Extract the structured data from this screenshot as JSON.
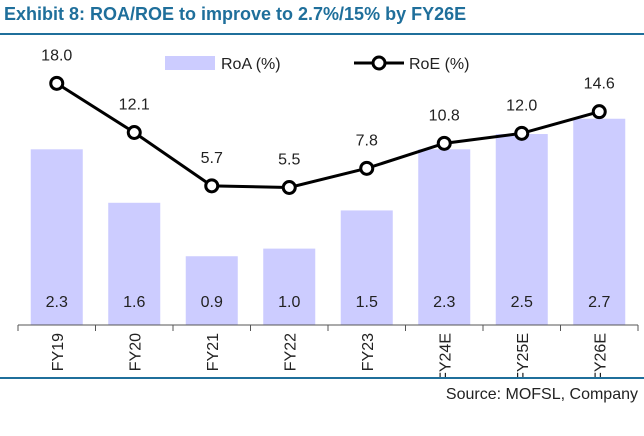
{
  "title": "Exhibit 8: ROA/ROE to improve to 2.7%/15% by FY26E",
  "source": "Source: MOFSL, Company",
  "colors": {
    "title": "#1f6f9b",
    "bar": "#ccccff",
    "line": "#000000",
    "marker_fill": "#ffffff"
  },
  "chart_data": {
    "type": "bar",
    "categories": [
      "FY19",
      "FY20",
      "FY21",
      "FY22",
      "FY23",
      "FY24E",
      "FY25E",
      "FY26E"
    ],
    "series": [
      {
        "name": "RoA (%)",
        "type": "bar",
        "axis": "left",
        "values": [
          2.3,
          1.6,
          0.9,
          1.0,
          1.5,
          2.3,
          2.5,
          2.7
        ],
        "labels": [
          "2.3",
          "1.6",
          "0.9",
          "1.0",
          "1.5",
          "2.3",
          "2.5",
          "2.7"
        ]
      },
      {
        "name": "RoE (%)",
        "type": "line",
        "axis": "right",
        "values": [
          18.0,
          12.1,
          5.7,
          5.5,
          7.8,
          10.8,
          12.0,
          14.6
        ],
        "labels": [
          "18.0",
          "12.1",
          "5.7",
          "5.5",
          "7.8",
          "10.8",
          "12.0",
          "14.6"
        ]
      }
    ],
    "y_left_range": [
      0,
      3.6
    ],
    "y_right_range": [
      -11,
      22
    ],
    "grid": false,
    "legend_position": "top"
  }
}
